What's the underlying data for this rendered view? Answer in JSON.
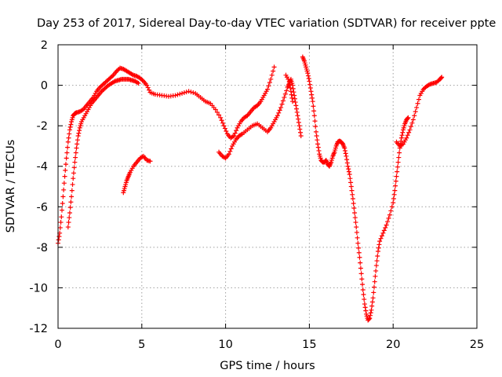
{
  "chart_data": {
    "type": "scatter",
    "title": "Day 253 of 2017, Sidereal Day-to-day VTEC variation (SDTVAR) for receiver ppte",
    "xlabel": "GPS time / hours",
    "ylabel": "SDTVAR / TECUs",
    "xlim": [
      0,
      25
    ],
    "ylim": [
      -12,
      2
    ],
    "xticks": [
      0,
      5,
      10,
      15,
      20,
      25
    ],
    "yticks": [
      -12,
      -10,
      -8,
      -6,
      -4,
      -2,
      0,
      2
    ],
    "grid": true,
    "marker": "plus",
    "color": "#ff0000",
    "series": [
      {
        "values": [
          [
            0.0,
            -7.8
          ],
          [
            0.1,
            -7.3
          ],
          [
            0.2,
            -6.5
          ],
          [
            0.3,
            -5.5
          ],
          [
            0.4,
            -4.5
          ],
          [
            0.5,
            -3.6
          ],
          [
            0.6,
            -2.8
          ],
          [
            0.7,
            -2.2
          ],
          [
            0.8,
            -1.8
          ],
          [
            0.9,
            -1.5
          ],
          [
            1.0,
            -1.4
          ],
          [
            1.1,
            -1.35
          ],
          [
            1.3,
            -1.3
          ],
          [
            1.5,
            -1.2
          ],
          [
            1.7,
            -1.0
          ],
          [
            1.9,
            -0.8
          ],
          [
            2.1,
            -0.6
          ],
          [
            2.3,
            -0.3
          ],
          [
            2.5,
            -0.1
          ],
          [
            2.7,
            0.05
          ],
          [
            2.9,
            0.2
          ],
          [
            3.1,
            0.35
          ],
          [
            3.3,
            0.5
          ],
          [
            3.5,
            0.7
          ],
          [
            3.7,
            0.85
          ],
          [
            3.9,
            0.8
          ],
          [
            4.1,
            0.7
          ],
          [
            4.3,
            0.6
          ],
          [
            4.5,
            0.5
          ],
          [
            4.7,
            0.45
          ],
          [
            4.9,
            0.35
          ],
          [
            5.1,
            0.2
          ],
          [
            5.3,
            0.0
          ],
          [
            5.5,
            -0.35
          ],
          [
            5.8,
            -0.45
          ],
          [
            6.2,
            -0.5
          ],
          [
            6.6,
            -0.55
          ],
          [
            7.0,
            -0.5
          ],
          [
            7.4,
            -0.4
          ],
          [
            7.8,
            -0.3
          ],
          [
            8.2,
            -0.4
          ],
          [
            8.5,
            -0.6
          ],
          [
            8.8,
            -0.8
          ],
          [
            9.1,
            -0.9
          ],
          [
            9.4,
            -1.2
          ],
          [
            9.7,
            -1.6
          ],
          [
            9.9,
            -2.0
          ],
          [
            10.1,
            -2.4
          ],
          [
            10.3,
            -2.6
          ],
          [
            10.5,
            -2.5
          ],
          [
            10.7,
            -2.1
          ],
          [
            10.9,
            -1.8
          ],
          [
            11.1,
            -1.6
          ],
          [
            11.3,
            -1.5
          ],
          [
            11.5,
            -1.3
          ],
          [
            11.7,
            -1.1
          ],
          [
            11.9,
            -1.0
          ],
          [
            12.1,
            -0.8
          ],
          [
            12.3,
            -0.5
          ],
          [
            12.5,
            -0.2
          ],
          [
            12.7,
            0.3
          ],
          [
            12.9,
            0.9
          ]
        ]
      },
      {
        "values": [
          [
            0.6,
            -7.0
          ],
          [
            0.7,
            -6.3
          ],
          [
            0.8,
            -5.5
          ],
          [
            0.9,
            -4.6
          ],
          [
            1.0,
            -3.8
          ],
          [
            1.1,
            -3.1
          ],
          [
            1.2,
            -2.5
          ],
          [
            1.3,
            -2.1
          ],
          [
            1.4,
            -1.8
          ],
          [
            1.6,
            -1.5
          ],
          [
            1.8,
            -1.2
          ],
          [
            2.0,
            -0.9
          ],
          [
            2.2,
            -0.7
          ],
          [
            2.4,
            -0.5
          ],
          [
            2.6,
            -0.3
          ],
          [
            2.8,
            -0.15
          ],
          [
            3.0,
            0.0
          ],
          [
            3.2,
            0.1
          ],
          [
            3.4,
            0.2
          ],
          [
            3.6,
            0.25
          ],
          [
            3.8,
            0.3
          ],
          [
            4.0,
            0.3
          ],
          [
            4.2,
            0.3
          ],
          [
            4.4,
            0.25
          ],
          [
            4.6,
            0.2
          ],
          [
            4.8,
            0.1
          ]
        ]
      },
      {
        "values": [
          [
            3.9,
            -5.3
          ],
          [
            4.0,
            -5.0
          ],
          [
            4.1,
            -4.7
          ],
          [
            4.2,
            -4.5
          ],
          [
            4.3,
            -4.3
          ],
          [
            4.5,
            -4.0
          ],
          [
            4.7,
            -3.8
          ],
          [
            4.9,
            -3.6
          ],
          [
            5.1,
            -3.5
          ],
          [
            5.3,
            -3.7
          ],
          [
            5.5,
            -3.75
          ]
        ]
      },
      {
        "values": [
          [
            9.6,
            -3.3
          ],
          [
            9.8,
            -3.5
          ],
          [
            10.0,
            -3.6
          ],
          [
            10.2,
            -3.4
          ],
          [
            10.4,
            -3.0
          ],
          [
            10.6,
            -2.7
          ],
          [
            10.8,
            -2.5
          ],
          [
            11.0,
            -2.4
          ],
          [
            11.3,
            -2.2
          ],
          [
            11.6,
            -2.0
          ],
          [
            11.9,
            -1.9
          ],
          [
            12.2,
            -2.1
          ],
          [
            12.5,
            -2.3
          ],
          [
            12.7,
            -2.1
          ],
          [
            12.9,
            -1.8
          ],
          [
            13.1,
            -1.5
          ],
          [
            13.3,
            -1.1
          ],
          [
            13.5,
            -0.6
          ],
          [
            13.7,
            -0.1
          ],
          [
            13.8,
            0.1
          ],
          [
            13.9,
            0.3
          ],
          [
            14.0,
            0.0
          ],
          [
            14.1,
            -0.5
          ],
          [
            14.2,
            -1.0
          ],
          [
            14.3,
            -1.5
          ],
          [
            14.4,
            -2.0
          ],
          [
            14.5,
            -2.5
          ]
        ]
      },
      {
        "values": [
          [
            13.6,
            0.5
          ],
          [
            13.8,
            0.2
          ],
          [
            13.9,
            -0.3
          ],
          [
            14.0,
            -0.8
          ]
        ]
      },
      {
        "values": [
          [
            14.6,
            1.4
          ],
          [
            14.7,
            1.2
          ],
          [
            14.8,
            0.9
          ],
          [
            14.9,
            0.6
          ],
          [
            15.0,
            0.2
          ],
          [
            15.1,
            -0.3
          ],
          [
            15.2,
            -0.8
          ],
          [
            15.3,
            -1.5
          ],
          [
            15.4,
            -2.3
          ],
          [
            15.5,
            -2.9
          ],
          [
            15.6,
            -3.4
          ],
          [
            15.7,
            -3.7
          ],
          [
            15.8,
            -3.8
          ],
          [
            15.9,
            -3.8
          ],
          [
            16.0,
            -3.7
          ],
          [
            16.1,
            -3.9
          ],
          [
            16.2,
            -4.0
          ],
          [
            16.3,
            -3.8
          ],
          [
            16.4,
            -3.5
          ],
          [
            16.5,
            -3.3
          ],
          [
            16.6,
            -3.0
          ],
          [
            16.7,
            -2.8
          ],
          [
            16.8,
            -2.75
          ],
          [
            16.9,
            -2.8
          ],
          [
            17.0,
            -2.9
          ],
          [
            17.1,
            -3.1
          ],
          [
            17.2,
            -3.5
          ],
          [
            17.3,
            -4.0
          ],
          [
            17.4,
            -4.4
          ],
          [
            17.5,
            -5.0
          ],
          [
            17.6,
            -5.6
          ],
          [
            17.7,
            -6.3
          ],
          [
            17.8,
            -7.0
          ],
          [
            17.9,
            -7.8
          ],
          [
            18.0,
            -8.5
          ],
          [
            18.1,
            -9.3
          ],
          [
            18.2,
            -10.1
          ],
          [
            18.3,
            -10.8
          ],
          [
            18.4,
            -11.3
          ],
          [
            18.5,
            -11.6
          ],
          [
            18.6,
            -11.5
          ],
          [
            18.7,
            -11.1
          ],
          [
            18.8,
            -10.5
          ],
          [
            18.9,
            -9.7
          ],
          [
            19.0,
            -8.9
          ],
          [
            19.1,
            -8.2
          ],
          [
            19.2,
            -7.7
          ],
          [
            19.4,
            -7.3
          ],
          [
            19.6,
            -6.9
          ],
          [
            19.8,
            -6.4
          ],
          [
            20.0,
            -5.8
          ],
          [
            20.1,
            -5.2
          ],
          [
            20.2,
            -4.5
          ],
          [
            20.3,
            -3.8
          ],
          [
            20.4,
            -3.1
          ],
          [
            20.5,
            -2.6
          ],
          [
            20.6,
            -2.2
          ],
          [
            20.7,
            -1.9
          ],
          [
            20.8,
            -1.7
          ],
          [
            20.9,
            -1.6
          ]
        ]
      },
      {
        "values": [
          [
            20.2,
            -2.8
          ],
          [
            20.4,
            -3.0
          ],
          [
            20.6,
            -2.9
          ],
          [
            20.8,
            -2.6
          ],
          [
            21.0,
            -2.2
          ],
          [
            21.2,
            -1.7
          ],
          [
            21.4,
            -1.1
          ],
          [
            21.6,
            -0.5
          ],
          [
            21.8,
            -0.2
          ],
          [
            22.0,
            -0.05
          ],
          [
            22.2,
            0.05
          ],
          [
            22.4,
            0.1
          ],
          [
            22.6,
            0.15
          ],
          [
            22.8,
            0.3
          ],
          [
            22.9,
            0.4
          ]
        ]
      }
    ]
  }
}
